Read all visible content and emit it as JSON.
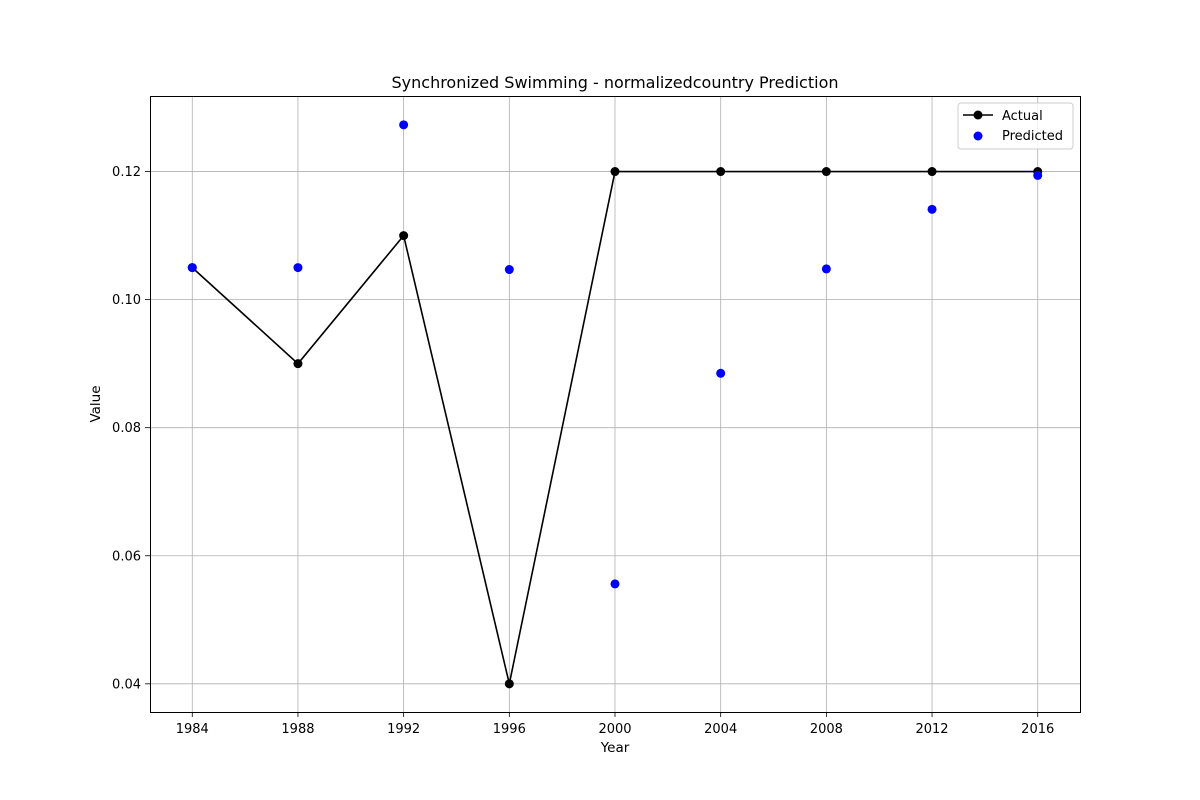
{
  "chart_data": {
    "type": "line",
    "title": "Synchronized Swimming - normalizedcountry Prediction",
    "xlabel": "Year",
    "ylabel": "Value",
    "x": [
      1984,
      1988,
      1992,
      1996,
      2000,
      2004,
      2008,
      2012,
      2016
    ],
    "xticks": [
      "1984",
      "1988",
      "1992",
      "1996",
      "2000",
      "2004",
      "2008",
      "2012",
      "2016"
    ],
    "yticks": [
      "0.04",
      "0.06",
      "0.08",
      "0.10",
      "0.12"
    ],
    "ytick_values": [
      0.04,
      0.06,
      0.08,
      0.1,
      0.12
    ],
    "xlim": [
      1982.4,
      2017.6
    ],
    "ylim": [
      0.0356,
      0.1318
    ],
    "grid": true,
    "legend_position": "top-right",
    "series": [
      {
        "name": "Actual",
        "style": "line-with-markers",
        "color": "#000000",
        "values": [
          0.105,
          0.09,
          0.11,
          0.04,
          0.12,
          0.12,
          0.12,
          0.12,
          0.12
        ]
      },
      {
        "name": "Predicted",
        "style": "scatter",
        "color": "#0000ff",
        "values": [
          0.105,
          0.105,
          0.1273,
          0.1047,
          0.0556,
          0.0885,
          0.1048,
          0.1141,
          0.1194
        ]
      }
    ]
  }
}
